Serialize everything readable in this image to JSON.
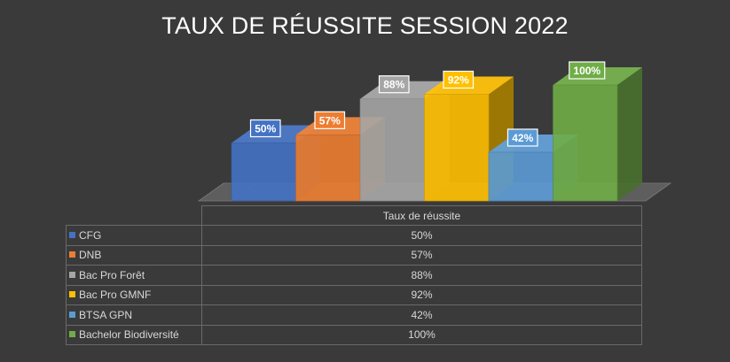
{
  "chart_data": {
    "type": "bar",
    "title": "TAUX DE RÉUSSITE SESSION 2022",
    "series_name": "Taux de réussite",
    "categories": [
      "CFG",
      "DNB",
      "Bac Pro Forêt",
      "Bac Pro GMNF",
      "BTSA GPN",
      "Bachelor Biodiversité"
    ],
    "values": [
      50,
      57,
      88,
      92,
      42,
      100
    ],
    "labels": [
      "50%",
      "57%",
      "88%",
      "92%",
      "42%",
      "100%"
    ],
    "colors": [
      "#4472c4",
      "#ed7d31",
      "#a5a5a5",
      "#ffc000",
      "#5b9bd5",
      "#70ad47"
    ],
    "ylim": [
      0,
      100
    ],
    "data_table": true
  }
}
